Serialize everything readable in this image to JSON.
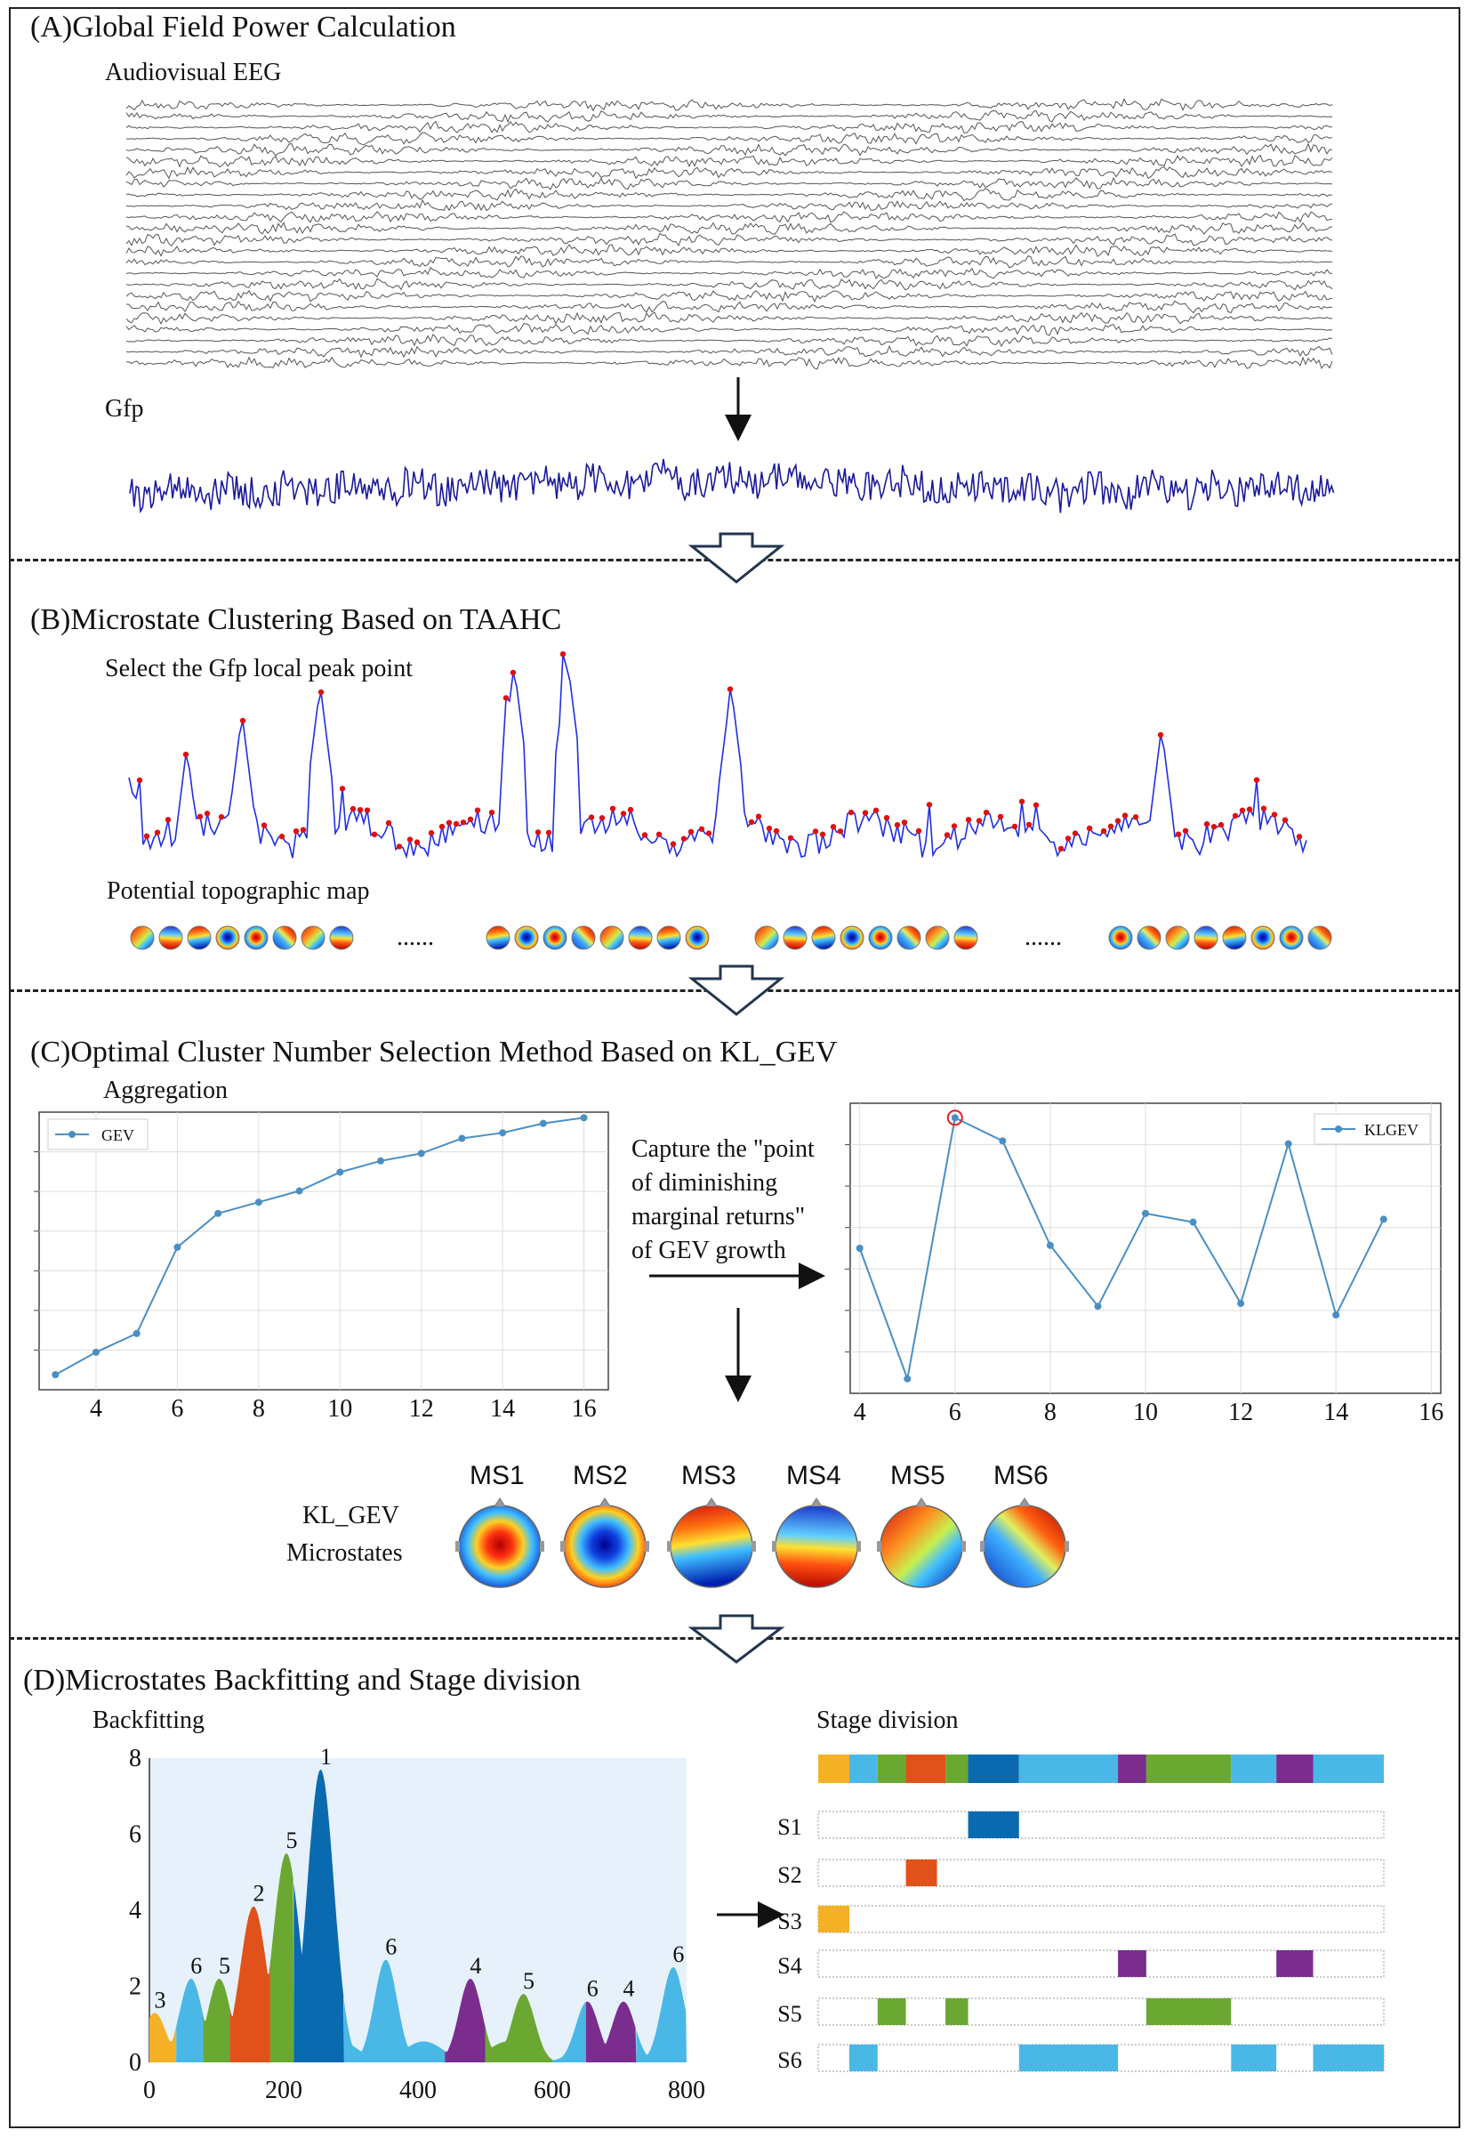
{
  "panels": {
    "a": {
      "title": "(A)Global Field Power Calculation",
      "eeg_label": "Audiovisual EEG",
      "gfp_label": "Gfp"
    },
    "b": {
      "title": "(B)Microstate Clustering Based on TAAHC",
      "peak_label": "Select the Gfp local peak point",
      "topo_label": "Potential topographic map",
      "ellipsis": "......"
    },
    "c": {
      "title": "(C)Optimal Cluster Number Selection Method Based on KL_GEV",
      "aggregation_label": "Aggregation",
      "gev_legend": "GEV",
      "klgev_legend": "KLGEV",
      "annotation_lines": [
        "Capture the \"point",
        "of diminishing",
        "marginal returns\"",
        "of GEV growth"
      ],
      "microstates_label_line1": "KL_GEV",
      "microstates_label_line2": "Microstates",
      "microstate_names": [
        "MS1",
        "MS2",
        "MS3",
        "MS4",
        "MS5",
        "MS6"
      ]
    },
    "d": {
      "title": "(D)Microstates Backfitting and Stage division",
      "backfitting_label": "Backfitting",
      "stage_label": "Stage division",
      "stage_names": [
        "S1",
        "S2",
        "S3",
        "S4",
        "S5",
        "S6"
      ]
    }
  },
  "colors": {
    "eeg_trace": "#555555",
    "gfp_trace": "#1a1a9a",
    "peak_line": "#1f2fe0",
    "peak_marker": "#e01010",
    "chart_line": "#4a8fc4",
    "ms1": "#f5b126",
    "ms2": "#e0521a",
    "ms3": "#f5b126",
    "ms4": "#7b2d8e",
    "ms5": "#6aa832",
    "ms6": "#4ab8e6",
    "ms_dark_blue": "#0a6ab0"
  },
  "chart_data": [
    {
      "type": "line",
      "series": [
        {
          "name": "GEV",
          "x": [
            3,
            4,
            5,
            6,
            7,
            8,
            9,
            10,
            11,
            12,
            13,
            14,
            15,
            16
          ],
          "values": [
            0.3,
            0.36,
            0.41,
            0.64,
            0.73,
            0.76,
            0.79,
            0.84,
            0.87,
            0.89,
            0.93,
            0.945,
            0.97,
            0.985
          ]
        }
      ],
      "xticks": [
        "4",
        "6",
        "8",
        "10",
        "12",
        "14",
        "16"
      ],
      "xlim": [
        2.6,
        16.6
      ],
      "ylim": [
        0.26,
        1.0
      ],
      "legend": "top-left",
      "grid": true
    },
    {
      "type": "line",
      "series": [
        {
          "name": "KLGEV",
          "x": [
            4,
            5,
            6,
            7,
            8,
            9,
            10,
            11,
            12,
            13,
            14,
            15
          ],
          "values": [
            0.5,
            0.05,
            0.95,
            0.87,
            0.51,
            0.3,
            0.62,
            0.59,
            0.31,
            0.86,
            0.27,
            0.6
          ]
        }
      ],
      "highlight_x": 6,
      "xticks": [
        "4",
        "6",
        "8",
        "10",
        "12",
        "14",
        "16"
      ],
      "xlim": [
        3.8,
        16.2
      ],
      "ylim": [
        0.0,
        1.0
      ],
      "legend": "top-right",
      "grid": true
    },
    {
      "type": "area",
      "xticks": [
        "0",
        "200",
        "400",
        "600",
        "800"
      ],
      "yticks": [
        "0",
        "2",
        "4",
        "6",
        "8"
      ],
      "xlim": [
        0,
        800
      ],
      "ylim": [
        0,
        8
      ],
      "peak_labels": [
        {
          "label": "3",
          "x": 8,
          "y": 1.3
        },
        {
          "label": "6",
          "x": 62,
          "y": 2.2
        },
        {
          "label": "5",
          "x": 104,
          "y": 2.2
        },
        {
          "label": "2",
          "x": 155,
          "y": 4.1
        },
        {
          "label": "5",
          "x": 204,
          "y": 5.5
        },
        {
          "label": "1",
          "x": 255,
          "y": 7.7
        },
        {
          "label": "6",
          "x": 352,
          "y": 2.7
        },
        {
          "label": "4",
          "x": 478,
          "y": 2.2
        },
        {
          "label": "5",
          "x": 557,
          "y": 1.8
        },
        {
          "label": "6",
          "x": 652,
          "y": 1.6
        },
        {
          "label": "4",
          "x": 706,
          "y": 1.6
        },
        {
          "label": "6",
          "x": 780,
          "y": 2.5
        }
      ],
      "segments": [
        {
          "state": "ms1",
          "x0": 0,
          "x1": 40
        },
        {
          "state": "ms6",
          "x0": 40,
          "x1": 80
        },
        {
          "state": "ms5",
          "x0": 80,
          "x1": 120
        },
        {
          "state": "ms2",
          "x0": 120,
          "x1": 180
        },
        {
          "state": "ms5",
          "x0": 180,
          "x1": 215
        },
        {
          "state": "dark",
          "x0": 215,
          "x1": 290
        },
        {
          "state": "ms6",
          "x0": 290,
          "x1": 440
        },
        {
          "state": "ms4",
          "x0": 440,
          "x1": 500
        },
        {
          "state": "ms5",
          "x0": 500,
          "x1": 600
        },
        {
          "state": "ms6",
          "x0": 600,
          "x1": 650
        },
        {
          "state": "ms4",
          "x0": 650,
          "x1": 725
        },
        {
          "state": "ms6",
          "x0": 725,
          "x1": 800
        }
      ]
    },
    {
      "type": "table",
      "timeline": [
        {
          "state": "ms1",
          "x0": 0,
          "x1": 0.055
        },
        {
          "state": "ms6",
          "x0": 0.055,
          "x1": 0.105
        },
        {
          "state": "ms5",
          "x0": 0.105,
          "x1": 0.155
        },
        {
          "state": "ms2",
          "x0": 0.155,
          "x1": 0.225
        },
        {
          "state": "ms5",
          "x0": 0.225,
          "x1": 0.265
        },
        {
          "state": "dark",
          "x0": 0.265,
          "x1": 0.355
        },
        {
          "state": "ms6",
          "x0": 0.355,
          "x1": 0.53
        },
        {
          "state": "ms4",
          "x0": 0.53,
          "x1": 0.58
        },
        {
          "state": "ms5",
          "x0": 0.58,
          "x1": 0.73
        },
        {
          "state": "ms6",
          "x0": 0.73,
          "x1": 0.81
        },
        {
          "state": "ms4",
          "x0": 0.81,
          "x1": 0.875
        },
        {
          "state": "ms6",
          "x0": 0.875,
          "x1": 1.0
        }
      ],
      "rows": [
        {
          "stage": "S1",
          "blocks": [
            {
              "state": "dark",
              "x0": 0.265,
              "x1": 0.355
            }
          ]
        },
        {
          "stage": "S2",
          "blocks": [
            {
              "state": "ms2",
              "x0": 0.155,
              "x1": 0.21
            }
          ]
        },
        {
          "stage": "S3",
          "blocks": [
            {
              "state": "ms1",
              "x0": 0.0,
              "x1": 0.055
            }
          ]
        },
        {
          "stage": "S4",
          "blocks": [
            {
              "state": "ms4",
              "x0": 0.53,
              "x1": 0.58
            },
            {
              "state": "ms4",
              "x0": 0.81,
              "x1": 0.875
            }
          ]
        },
        {
          "stage": "S5",
          "blocks": [
            {
              "state": "ms5",
              "x0": 0.105,
              "x1": 0.155
            },
            {
              "state": "ms5",
              "x0": 0.225,
              "x1": 0.265
            },
            {
              "state": "ms5",
              "x0": 0.58,
              "x1": 0.73
            }
          ]
        },
        {
          "stage": "S6",
          "blocks": [
            {
              "state": "ms6",
              "x0": 0.055,
              "x1": 0.105
            },
            {
              "state": "ms6",
              "x0": 0.355,
              "x1": 0.53
            },
            {
              "state": "ms6",
              "x0": 0.73,
              "x1": 0.81
            },
            {
              "state": "ms6",
              "x0": 0.875,
              "x1": 1.0
            }
          ]
        }
      ]
    }
  ]
}
